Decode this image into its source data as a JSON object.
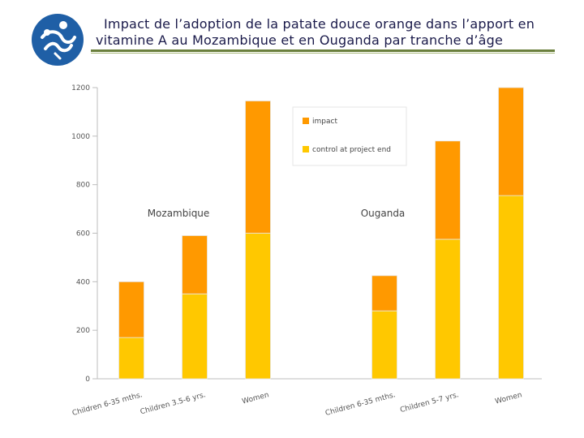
{
  "header": {
    "title_line1": "Impact de l’adoption de la patate douce orange dans l’apport en",
    "title_line2": "vitamine A au Mozambique et en Ouganda par tranche d’âge",
    "logo_icon": "figures-logo-icon",
    "logo_color": "#1f5fa6"
  },
  "chart_data": {
    "type": "bar",
    "stacked": true,
    "categories": [
      "Children 6-35 mths.",
      "Children 3.5-6 yrs.",
      "Women",
      "Children 6-35 mths.",
      "Children 5-7 yrs.",
      "Women"
    ],
    "groups": [
      {
        "label": "Mozambique",
        "category_indices": [
          0,
          1,
          2
        ]
      },
      {
        "label": "Ouganda",
        "category_indices": [
          3,
          4,
          5
        ]
      }
    ],
    "series": [
      {
        "name": "control at project end",
        "color": "#ffc800",
        "values": [
          170,
          350,
          600,
          280,
          575,
          755
        ]
      },
      {
        "name": "impact",
        "color": "#ff9900",
        "values": [
          230,
          240,
          545,
          145,
          405,
          445
        ]
      }
    ],
    "y_ticks": [
      "0",
      "200",
      "400",
      "600",
      "800",
      "1000",
      "1200"
    ],
    "ylim": [
      0,
      1200
    ],
    "legend_position": "top-center",
    "grid": false
  }
}
